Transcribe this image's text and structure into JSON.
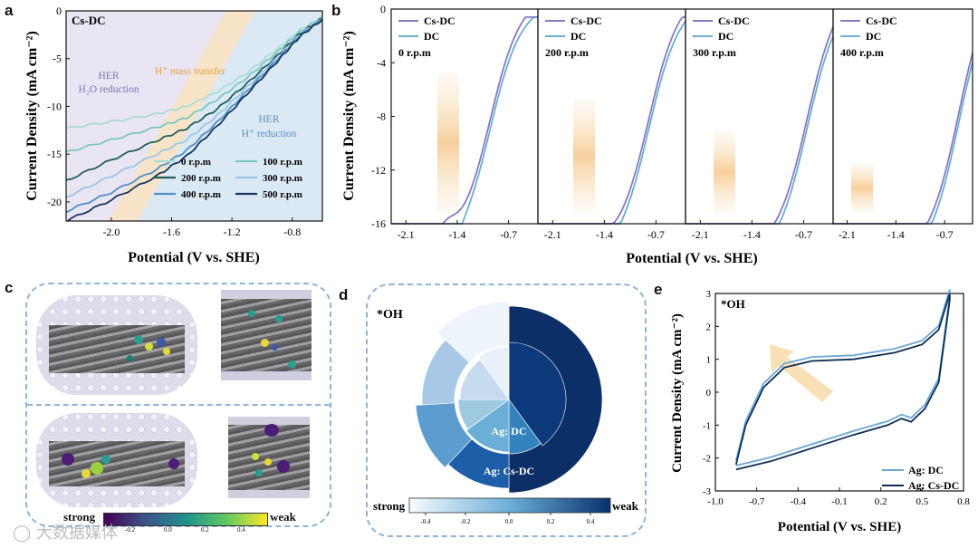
{
  "panel_labels": {
    "a": "a",
    "b": "b",
    "c": "c",
    "d": "d",
    "e": "e"
  },
  "panel_a": {
    "corner_label": "Cs-DC",
    "region_labels": {
      "h2o_line1": "HER",
      "h2o_line2": "H₂O reduction",
      "mass_transfer": "H⁺ mass transfer",
      "hplus_line1": "HER",
      "hplus_line2": "H⁺ reduction"
    },
    "xlabel": "Potential (V vs. SHE)",
    "ylabel": "Current Density (mA cm⁻²)",
    "xticks": [
      "-2.0",
      "-1.6",
      "-1.2",
      "-0.8"
    ],
    "yticks": [
      "0",
      "-5",
      "-10",
      "-15",
      "-20"
    ],
    "legend": [
      "0 r.p.m",
      "100 r.p.m",
      "200 r.p.m",
      "300 r.p.m",
      "400 r.p.m",
      "500 r.p.m"
    ]
  },
  "panel_b": {
    "xlabel": "Potential (V vs. SHE)",
    "ylabel": "Current Density (mA cm⁻²)",
    "yticks": [
      "0",
      "-4",
      "-8",
      "-12",
      "-16"
    ],
    "xticks": [
      "-2.1",
      "-1.4",
      "-0.7"
    ],
    "legend": [
      "Cs-DC",
      "DC"
    ],
    "subpanels": [
      "0 r.p.m",
      "200 r.p.m",
      "300 r.p.m",
      "400 r.p.m"
    ]
  },
  "panel_c": {
    "strong": "strong",
    "weak": "weak",
    "ticks": [
      "-0.2",
      "0.0",
      "0.2",
      "0.4"
    ]
  },
  "panel_d": {
    "corner_label": "*OH",
    "inner_label": "Ag: DC",
    "outer_label": "Ag: Cs-DC",
    "strong": "strong",
    "weak": "weak",
    "ticks": [
      "-0.4",
      "-0.2",
      "0.0",
      "0.2",
      "0.4"
    ]
  },
  "panel_e": {
    "corner_label": "*OH",
    "xlabel": "Potential (V vs. SHE)",
    "ylabel": "Current Density (mA cm⁻²)",
    "xticks": [
      "-1.0",
      "-0.7",
      "-0.4",
      "-0.1",
      "0.2",
      "0.5",
      "0.8"
    ],
    "yticks": [
      "3",
      "2",
      "1",
      "0",
      "-1",
      "-2",
      "-3"
    ],
    "legend": [
      "Ag: DC",
      "Ag: Cs-DC"
    ]
  },
  "watermark": "大数据媒体",
  "colors": {
    "cs_dc": "#8a78c2",
    "dc": "#6aaed0",
    "navy": "#0b2a5e",
    "orange_band": "#f8d9a8",
    "blue_bg": "#dbe9f5"
  },
  "chart_data": [
    {
      "type": "line",
      "panel": "a",
      "xlabel": "Potential (V vs. SHE)",
      "ylabel": "Current Density (mA cm⁻²)",
      "xlim": [
        -2.3,
        -0.6
      ],
      "ylim": [
        -22,
        0
      ],
      "series": [
        {
          "name": "0 r.p.m",
          "color": "#a9dcd2",
          "x": [
            -2.3,
            -2.0,
            -1.7,
            -1.5,
            -1.3,
            -1.1,
            -0.9,
            -0.75,
            -0.6
          ],
          "y": [
            -12.3,
            -11.6,
            -10.8,
            -10.0,
            -8.5,
            -6.5,
            -4.0,
            -2.0,
            -0.6
          ]
        },
        {
          "name": "100 r.p.m",
          "color": "#7cc8be",
          "x": [
            -2.3,
            -2.0,
            -1.7,
            -1.5,
            -1.3,
            -1.1,
            -0.9,
            -0.75,
            -0.6
          ],
          "y": [
            -14.8,
            -13.5,
            -12.2,
            -11.2,
            -9.3,
            -7.0,
            -4.3,
            -2.2,
            -0.7
          ]
        },
        {
          "name": "200 r.p.m",
          "color": "#1f5e5a",
          "x": [
            -2.3,
            -2.0,
            -1.7,
            -1.5,
            -1.3,
            -1.1,
            -0.9,
            -0.75,
            -0.6
          ],
          "y": [
            -17.8,
            -15.6,
            -13.6,
            -12.3,
            -10.3,
            -7.6,
            -4.7,
            -2.4,
            -0.8
          ]
        },
        {
          "name": "300 r.p.m",
          "color": "#9cc6e6",
          "x": [
            -2.3,
            -2.0,
            -1.7,
            -1.5,
            -1.3,
            -1.1,
            -0.9,
            -0.75,
            -0.6
          ],
          "y": [
            -19.5,
            -17.3,
            -15.0,
            -13.5,
            -11.0,
            -8.0,
            -4.9,
            -2.5,
            -0.8
          ]
        },
        {
          "name": "400 r.p.m",
          "color": "#4f8fc9",
          "x": [
            -2.3,
            -2.0,
            -1.7,
            -1.5,
            -1.3,
            -1.1,
            -0.9,
            -0.75,
            -0.6
          ],
          "y": [
            -21.0,
            -19.0,
            -16.6,
            -14.6,
            -11.7,
            -8.4,
            -5.1,
            -2.6,
            -0.8
          ]
        },
        {
          "name": "500 r.p.m",
          "color": "#17365f",
          "x": [
            -2.3,
            -2.0,
            -1.7,
            -1.5,
            -1.3,
            -1.1,
            -0.9,
            -0.75,
            -0.6
          ],
          "y": [
            -22.0,
            -19.8,
            -17.3,
            -15.2,
            -12.1,
            -8.7,
            -5.3,
            -2.7,
            -0.9
          ]
        }
      ]
    },
    {
      "type": "line",
      "panel": "b",
      "subpanels": [
        "0 r.p.m",
        "200 r.p.m",
        "300 r.p.m",
        "400 r.p.m"
      ],
      "xlim": [
        -2.3,
        -0.3
      ],
      "ylim": [
        -16,
        0
      ],
      "series": [
        {
          "name": "Cs-DC",
          "color": "#8a78c2"
        },
        {
          "name": "DC",
          "color": "#6aaed0"
        }
      ]
    },
    {
      "type": "pie",
      "panel": "d",
      "labels": [
        "Ag: DC",
        "Ag: Cs-DC"
      ],
      "inner_values": [
        0.4,
        0.1,
        0.15,
        0.1,
        0.15,
        0.1
      ],
      "outer_values": [
        0.5,
        0.12,
        0.12,
        0.13,
        0.13
      ]
    },
    {
      "type": "line",
      "panel": "e",
      "xlabel": "Potential (V vs. SHE)",
      "ylabel": "Current Density (mA cm⁻²)",
      "xlim": [
        -1.0,
        0.8
      ],
      "ylim": [
        -3,
        3
      ],
      "series": [
        {
          "name": "Ag: DC",
          "color": "#6aa8d6"
        },
        {
          "name": "Ag: Cs-DC",
          "color": "#0e2e55"
        }
      ]
    }
  ]
}
